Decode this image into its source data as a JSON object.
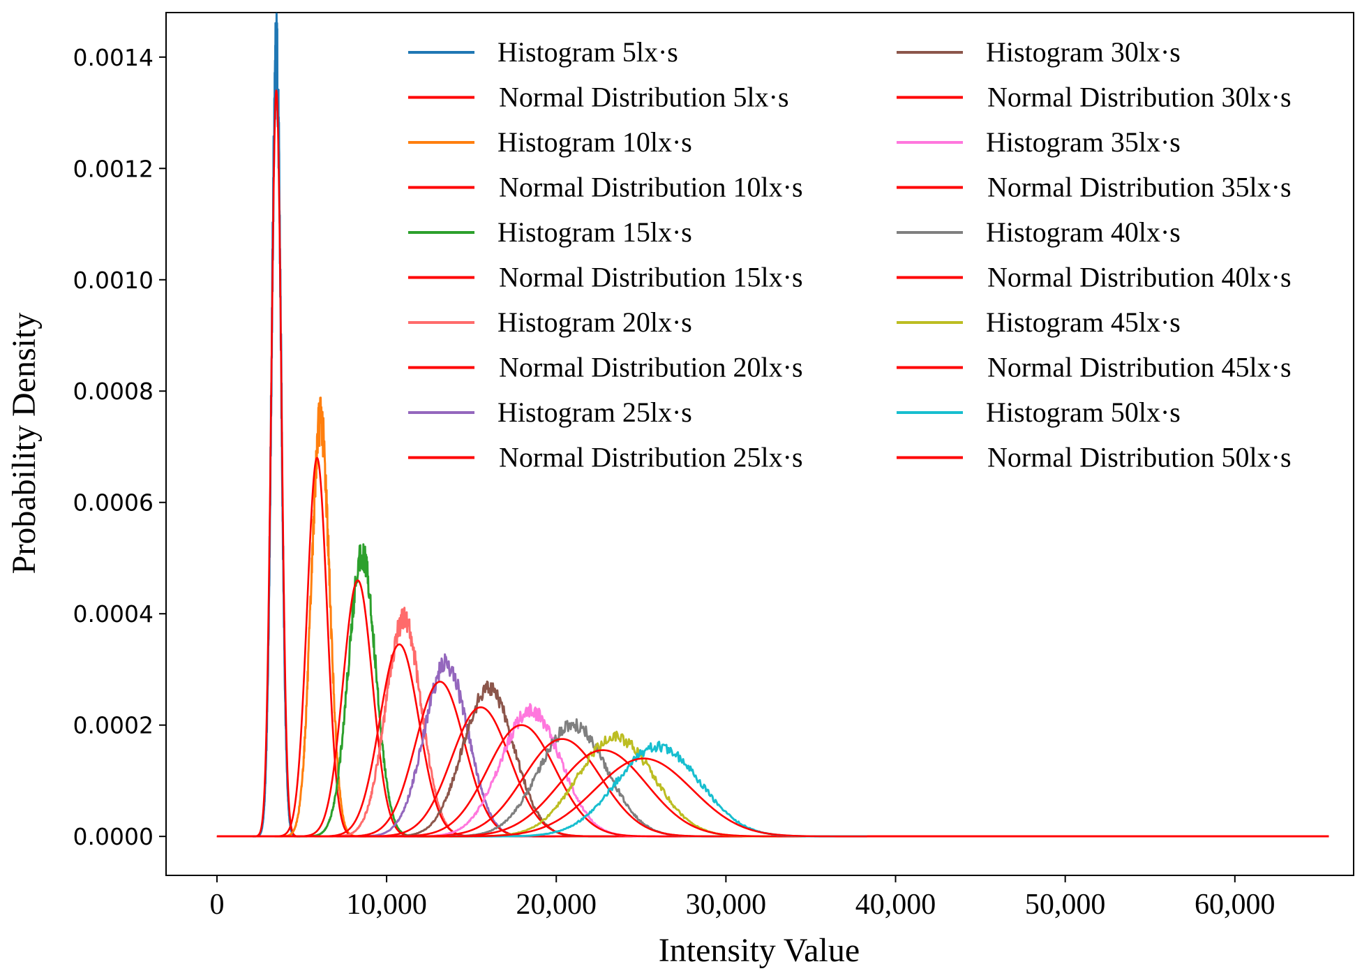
{
  "chart_data": {
    "type": "line",
    "title": "",
    "xlabel": "Intensity Value",
    "ylabel": "Probability Density",
    "xlim": [
      -3000,
      67000
    ],
    "ylim": [
      -7e-05,
      0.00148
    ],
    "x_ticks": [
      0,
      10000,
      20000,
      30000,
      40000,
      50000,
      60000
    ],
    "x_tick_labels": [
      "0",
      "10,000",
      "20,000",
      "30,000",
      "40,000",
      "50,000",
      "60,000"
    ],
    "y_ticks": [
      0,
      0.0002,
      0.0004,
      0.0006,
      0.0008,
      0.001,
      0.0012,
      0.0014
    ],
    "y_tick_labels": [
      "0.0000",
      "0.0002",
      "0.0004",
      "0.0006",
      "0.0008",
      "0.0010",
      "0.0012",
      "0.0014"
    ],
    "x_range_drawn": [
      0,
      65535
    ],
    "grid": false,
    "legend_position": "top-right",
    "legend_columns": 2,
    "series": [
      {
        "name": "Histogram 5lx·s",
        "kind": "histogram",
        "color": "#1f77b4",
        "mean": 3500,
        "peak": 0.00141,
        "sigma": 280
      },
      {
        "name": "Normal Distribution 5lx·s",
        "kind": "normal",
        "color": "#ff0000",
        "mean": 3500,
        "peak": 0.00134,
        "sigma": 297
      },
      {
        "name": "Histogram 10lx·s",
        "kind": "histogram",
        "color": "#ff7f0e",
        "mean": 6100,
        "peak": 0.00075,
        "sigma": 540
      },
      {
        "name": "Normal Distribution 10lx·s",
        "kind": "normal",
        "color": "#ff0000",
        "mean": 5900,
        "peak": 0.00068,
        "sigma": 585
      },
      {
        "name": "Histogram 15lx·s",
        "kind": "histogram",
        "color": "#2ca02c",
        "mean": 8550,
        "peak": 0.00051,
        "sigma": 800
      },
      {
        "name": "Normal Distribution 15lx·s",
        "kind": "normal",
        "color": "#ff0000",
        "mean": 8300,
        "peak": 0.00046,
        "sigma": 865
      },
      {
        "name": "Histogram 20lx·s",
        "kind": "histogram",
        "color": "#ff6b6b",
        "mean": 11000,
        "peak": 0.00039,
        "sigma": 1050
      },
      {
        "name": "Normal Distribution 20lx·s",
        "kind": "normal",
        "color": "#ff0000",
        "mean": 10750,
        "peak": 0.000345,
        "sigma": 1155
      },
      {
        "name": "Histogram 25lx·s",
        "kind": "histogram",
        "color": "#9467bd",
        "mean": 13500,
        "peak": 0.00031,
        "sigma": 1290
      },
      {
        "name": "Normal Distribution 25lx·s",
        "kind": "normal",
        "color": "#ff0000",
        "mean": 13150,
        "peak": 0.000278,
        "sigma": 1435
      },
      {
        "name": "Histogram 30lx·s",
        "kind": "histogram",
        "color": "#8c564b",
        "mean": 16000,
        "peak": 0.000265,
        "sigma": 1510
      },
      {
        "name": "Normal Distribution 30lx·s",
        "kind": "normal",
        "color": "#ff0000",
        "mean": 15550,
        "peak": 0.000232,
        "sigma": 1720
      },
      {
        "name": "Histogram 35lx·s",
        "kind": "histogram",
        "color": "#ff77dd",
        "mean": 18500,
        "peak": 0.000225,
        "sigma": 1770
      },
      {
        "name": "Normal Distribution 35lx·s",
        "kind": "normal",
        "color": "#ff0000",
        "mean": 17950,
        "peak": 0.0002,
        "sigma": 1995
      },
      {
        "name": "Histogram 40lx·s",
        "kind": "histogram",
        "color": "#7f7f7f",
        "mean": 21000,
        "peak": 0.0002,
        "sigma": 1995
      },
      {
        "name": "Normal Distribution 40lx·s",
        "kind": "normal",
        "color": "#ff0000",
        "mean": 20350,
        "peak": 0.000175,
        "sigma": 2280
      },
      {
        "name": "Histogram 45lx·s",
        "kind": "histogram",
        "color": "#bcbd22",
        "mean": 23500,
        "peak": 0.000178,
        "sigma": 2240
      },
      {
        "name": "Normal Distribution 45lx·s",
        "kind": "normal",
        "color": "#ff0000",
        "mean": 22750,
        "peak": 0.000155,
        "sigma": 2575
      },
      {
        "name": "Histogram 50lx·s",
        "kind": "histogram",
        "color": "#17becf",
        "mean": 26000,
        "peak": 0.000162,
        "sigma": 2465
      },
      {
        "name": "Normal Distribution 50lx·s",
        "kind": "normal",
        "color": "#ff0000",
        "mean": 25150,
        "peak": 0.00014,
        "sigma": 2850
      }
    ]
  }
}
